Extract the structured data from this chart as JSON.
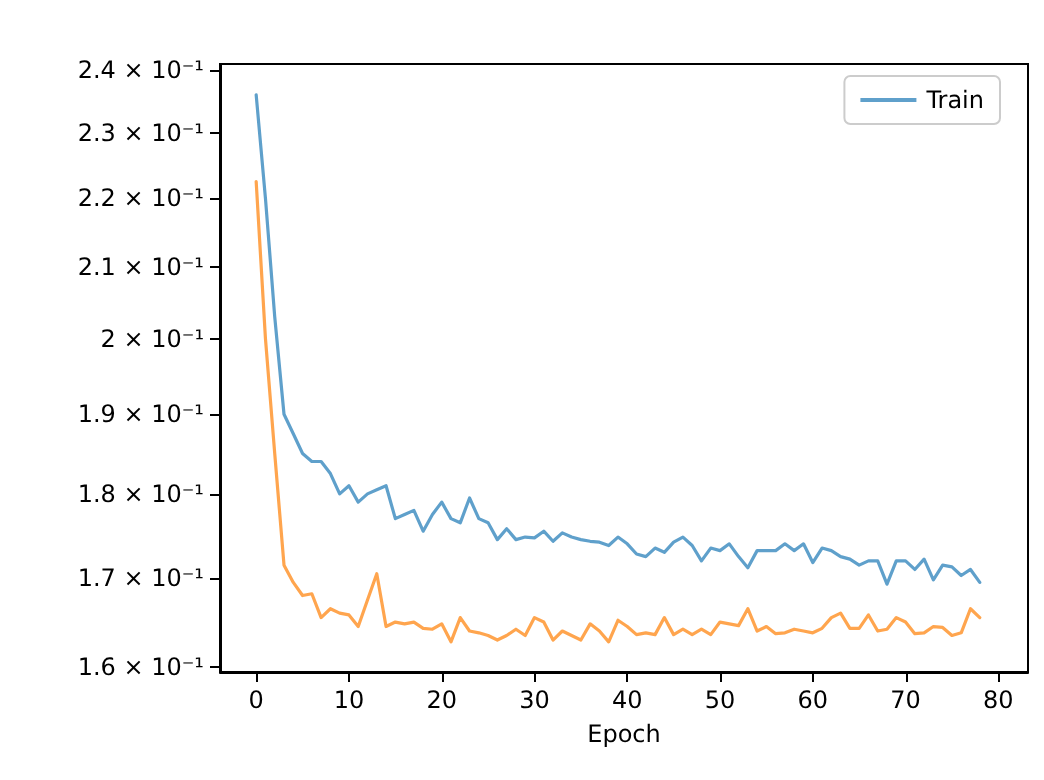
{
  "chart_data": {
    "type": "line",
    "xlabel": "Epoch",
    "x": [
      0,
      1,
      2,
      3,
      4,
      5,
      6,
      7,
      8,
      9,
      10,
      11,
      12,
      13,
      14,
      15,
      16,
      17,
      18,
      19,
      20,
      21,
      22,
      23,
      24,
      25,
      26,
      27,
      28,
      29,
      30,
      31,
      32,
      33,
      34,
      35,
      36,
      37,
      38,
      39,
      40,
      41,
      42,
      43,
      44,
      45,
      46,
      47,
      48,
      49,
      50,
      51,
      52,
      53,
      54,
      55,
      56,
      57,
      58,
      59,
      60,
      61,
      62,
      63,
      64,
      65,
      66,
      67,
      68,
      69,
      70,
      71,
      72,
      73,
      74,
      75,
      76,
      77,
      78
    ],
    "series": [
      {
        "name": "Train",
        "color": "#5fa0cb",
        "values": [
          0.236,
          0.22,
          0.203,
          0.19,
          0.1875,
          0.185,
          0.184,
          0.184,
          0.1825,
          0.18,
          0.181,
          0.179,
          0.18,
          0.1805,
          0.181,
          0.177,
          0.1775,
          0.178,
          0.1755,
          0.1775,
          0.179,
          0.177,
          0.1765,
          0.1795,
          0.177,
          0.1765,
          0.1745,
          0.1758,
          0.1745,
          0.1748,
          0.1747,
          0.1755,
          0.1743,
          0.1753,
          0.1748,
          0.1745,
          0.1743,
          0.1742,
          0.1738,
          0.1748,
          0.174,
          0.1728,
          0.1725,
          0.1735,
          0.173,
          0.1742,
          0.1748,
          0.1738,
          0.172,
          0.1735,
          0.1732,
          0.174,
          0.1725,
          0.1712,
          0.1732,
          0.1732,
          0.1732,
          0.174,
          0.1732,
          0.174,
          0.1718,
          0.1735,
          0.1732,
          0.1725,
          0.1722,
          0.1715,
          0.172,
          0.172,
          0.1693,
          0.172,
          0.172,
          0.171,
          0.1722,
          0.1698,
          0.1715,
          0.1713,
          0.1703,
          0.171,
          0.1695
        ]
      },
      {
        "color": "#ffa54e",
        "values": [
          0.2225,
          0.2,
          0.185,
          0.1715,
          0.1695,
          0.168,
          0.1682,
          0.1655,
          0.1665,
          0.166,
          0.1658,
          0.1645,
          0.1675,
          0.1705,
          0.1645,
          0.165,
          0.1648,
          0.165,
          0.1643,
          0.1642,
          0.1648,
          0.1628,
          0.1655,
          0.164,
          0.1638,
          0.1635,
          0.163,
          0.1635,
          0.1642,
          0.1635,
          0.1655,
          0.165,
          0.163,
          0.164,
          0.1635,
          0.163,
          0.1648,
          0.164,
          0.1628,
          0.1652,
          0.1645,
          0.1636,
          0.1638,
          0.1636,
          0.1655,
          0.1636,
          0.1642,
          0.1636,
          0.1642,
          0.1636,
          0.165,
          0.1648,
          0.1646,
          0.1665,
          0.164,
          0.1645,
          0.1637,
          0.1638,
          0.1642,
          0.164,
          0.1638,
          0.1643,
          0.1655,
          0.166,
          0.1643,
          0.1643,
          0.1658,
          0.164,
          0.1642,
          0.1655,
          0.165,
          0.1637,
          0.1638,
          0.1645,
          0.1644,
          0.1635,
          0.1638,
          0.1665,
          0.1655
        ]
      }
    ],
    "xlim": [
      -3.9,
      83.2
    ],
    "xticks": [
      0,
      10,
      20,
      30,
      40,
      50,
      60,
      70,
      80
    ],
    "ylim": [
      0.1595,
      0.241
    ],
    "yticks": [
      {
        "value": 0.16,
        "label": "1.6 × 10⁻¹"
      },
      {
        "value": 0.17,
        "label": "1.7 × 10⁻¹"
      },
      {
        "value": 0.18,
        "label": "1.8 × 10⁻¹"
      },
      {
        "value": 0.19,
        "label": "1.9 × 10⁻¹"
      },
      {
        "value": 0.2,
        "label": "2 × 10⁻¹"
      },
      {
        "value": 0.21,
        "label": "2.1 × 10⁻¹"
      },
      {
        "value": 0.22,
        "label": "2.2 × 10⁻¹"
      },
      {
        "value": 0.23,
        "label": "2.3 × 10⁻¹"
      },
      {
        "value": 0.24,
        "label": "2.4 × 10⁻¹"
      }
    ],
    "log": "y",
    "grid": false,
    "legend": "top right",
    "marker": "none",
    "line_style": "solid"
  }
}
